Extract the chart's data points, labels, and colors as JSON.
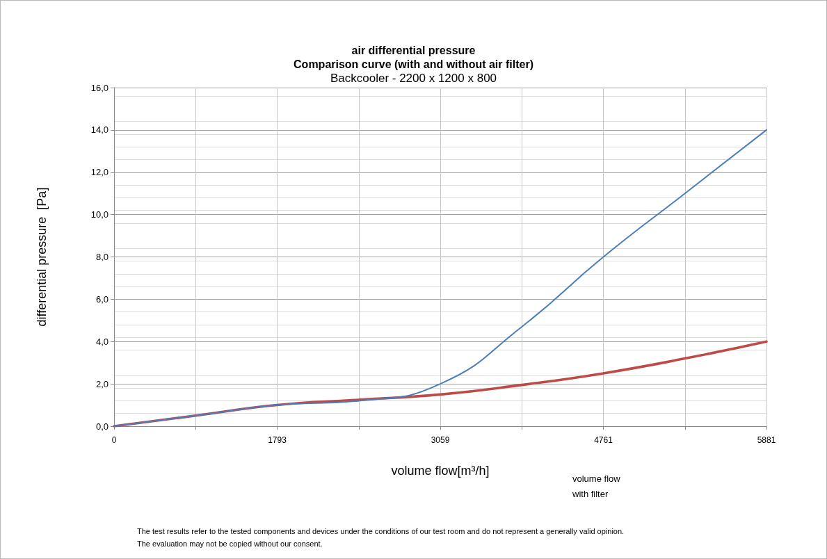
{
  "chart_data": {
    "type": "line",
    "title": "air differential pressure",
    "subtitle": "Comparison curve (with and without air filter)",
    "xlabel": "volume flow[m³/h]",
    "ylabel": "differential pressure  [Pa]",
    "categories": [
      "0",
      null,
      "1793",
      null,
      "3059",
      null,
      "4761",
      null,
      "5881"
    ],
    "series": [
      {
        "color": "#be4b48",
        "values": [
          0,
          0.5,
          1.0,
          1.25,
          1.5,
          1.95,
          2.5,
          3.2,
          4.0
        ]
      },
      {
        "color": "#4a7ebb",
        "values": [
          0,
          0.5,
          1.0,
          1.2,
          2.0,
          4.7,
          8.0,
          11.0,
          14.0
        ]
      }
    ],
    "ylim": [
      0,
      16
    ],
    "yticks": [
      {
        "value": 0,
        "label": "0,0"
      },
      {
        "value": 2,
        "label": "2,0"
      },
      {
        "value": 4,
        "label": "4,0"
      },
      {
        "value": 6,
        "label": "6,0"
      },
      {
        "value": 8,
        "label": "8,0"
      },
      {
        "value": 10,
        "label": "10,0"
      },
      {
        "value": 12,
        "label": "12,0"
      },
      {
        "value": 14,
        "label": "14,0"
      },
      {
        "value": 16,
        "label": "16,0"
      }
    ],
    "grid": true,
    "marker": "none",
    "line_style": "solid",
    "annotations": [
      "Backcooler - 2200 x 1200 x 800",
      "volume flow\nwith filter",
      "The test results refer to the tested components and devices under the conditions of our test room and do not represent a generally valid opinion.\nThe evaluation may not be copied without our consent."
    ]
  }
}
